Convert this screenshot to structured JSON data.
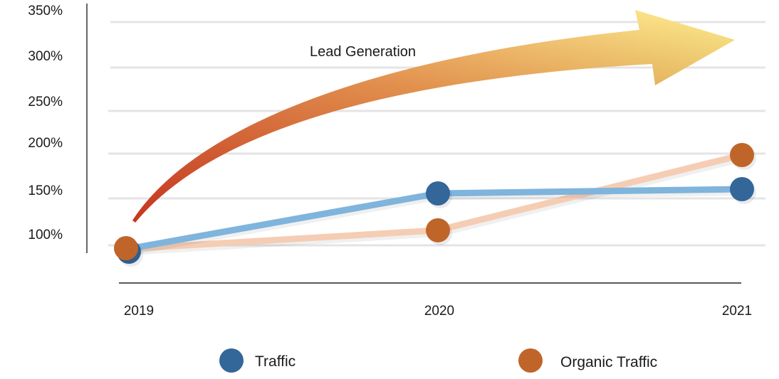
{
  "chart_data": {
    "type": "line",
    "categories": [
      "2019",
      "2020",
      "2021"
    ],
    "y_ticks": [
      "350%",
      "300%",
      "250%",
      "200%",
      "150%",
      "100%"
    ],
    "series": [
      {
        "name": "Traffic",
        "values": [
          95,
          155,
          160
        ],
        "color": "#336699",
        "line_color": "#7fb4dc"
      },
      {
        "name": "Organic Traffic",
        "values": [
          95,
          115,
          200
        ],
        "color": "#c0652a",
        "line_color": "#f5cdb4"
      }
    ],
    "annotation": {
      "text": "Lead Generation",
      "shape": "curved-arrow",
      "colors": [
        "#d93a24",
        "#f08c3a",
        "#fde96a"
      ]
    },
    "legend_position": "bottom",
    "grid": true
  }
}
